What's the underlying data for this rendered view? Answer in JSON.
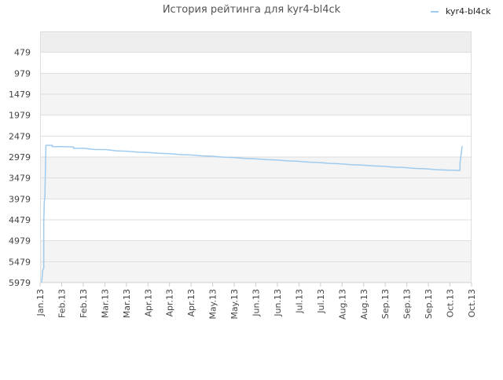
{
  "chart_data": {
    "type": "line",
    "title": "История рейтинга для kyr4-bl4ck",
    "xlabel": "",
    "ylabel": "",
    "y_inverted": true,
    "ylim": [
      5979,
      -21
    ],
    "yticks": [
      "479",
      "979",
      "1479",
      "1979",
      "2479",
      "2979",
      "3479",
      "3979",
      "4479",
      "4979",
      "5479",
      "5979"
    ],
    "ytick_values": [
      479,
      979,
      1479,
      1979,
      2479,
      2979,
      3479,
      3979,
      4479,
      4979,
      5479,
      5979
    ],
    "xticks": [
      "Jan.13",
      "Feb.13",
      "Feb.13",
      "Mar.13",
      "Mar.13",
      "Apr.13",
      "Apr.13",
      "Apr.13",
      "May.13",
      "May.13",
      "Jun.13",
      "Jun.13",
      "Jul.13",
      "Jul.13",
      "Aug.13",
      "Aug.13",
      "Sep.13",
      "Sep.13",
      "Sep.13",
      "Oct.13",
      "Oct.13"
    ],
    "grid": true,
    "legend_position": "top-right",
    "series": [
      {
        "name": "kyr4-bl4ck",
        "color": "#9fcbef",
        "points": [
          [
            0.0,
            5979
          ],
          [
            0.05,
            5680
          ],
          [
            0.1,
            5630
          ],
          [
            0.1,
            4550
          ],
          [
            0.12,
            4050
          ],
          [
            0.15,
            3950
          ],
          [
            0.2,
            2700
          ],
          [
            0.3,
            2700
          ],
          [
            0.5,
            2700
          ],
          [
            0.5,
            2730
          ],
          [
            1.0,
            2730
          ],
          [
            1.5,
            2740
          ],
          [
            1.5,
            2770
          ],
          [
            2.0,
            2770
          ],
          [
            2.5,
            2800
          ],
          [
            3.0,
            2800
          ],
          [
            3.5,
            2830
          ],
          [
            4.0,
            2840
          ],
          [
            4.5,
            2860
          ],
          [
            5.0,
            2870
          ],
          [
            5.5,
            2890
          ],
          [
            6.0,
            2900
          ],
          [
            6.5,
            2920
          ],
          [
            7.0,
            2930
          ],
          [
            7.5,
            2950
          ],
          [
            8.0,
            2960
          ],
          [
            8.5,
            2980
          ],
          [
            9.0,
            2990
          ],
          [
            9.5,
            3010
          ],
          [
            10.0,
            3020
          ],
          [
            10.5,
            3040
          ],
          [
            11.0,
            3050
          ],
          [
            11.5,
            3070
          ],
          [
            12.0,
            3080
          ],
          [
            12.5,
            3100
          ],
          [
            13.0,
            3110
          ],
          [
            13.5,
            3130
          ],
          [
            14.0,
            3140
          ],
          [
            14.5,
            3160
          ],
          [
            15.0,
            3170
          ],
          [
            15.5,
            3190
          ],
          [
            16.0,
            3200
          ],
          [
            16.5,
            3220
          ],
          [
            17.0,
            3230
          ],
          [
            17.5,
            3250
          ],
          [
            18.0,
            3260
          ],
          [
            18.5,
            3280
          ],
          [
            19.0,
            3290
          ],
          [
            19.6,
            3300
          ],
          [
            19.6,
            3120
          ],
          [
            19.7,
            2720
          ]
        ]
      }
    ]
  }
}
